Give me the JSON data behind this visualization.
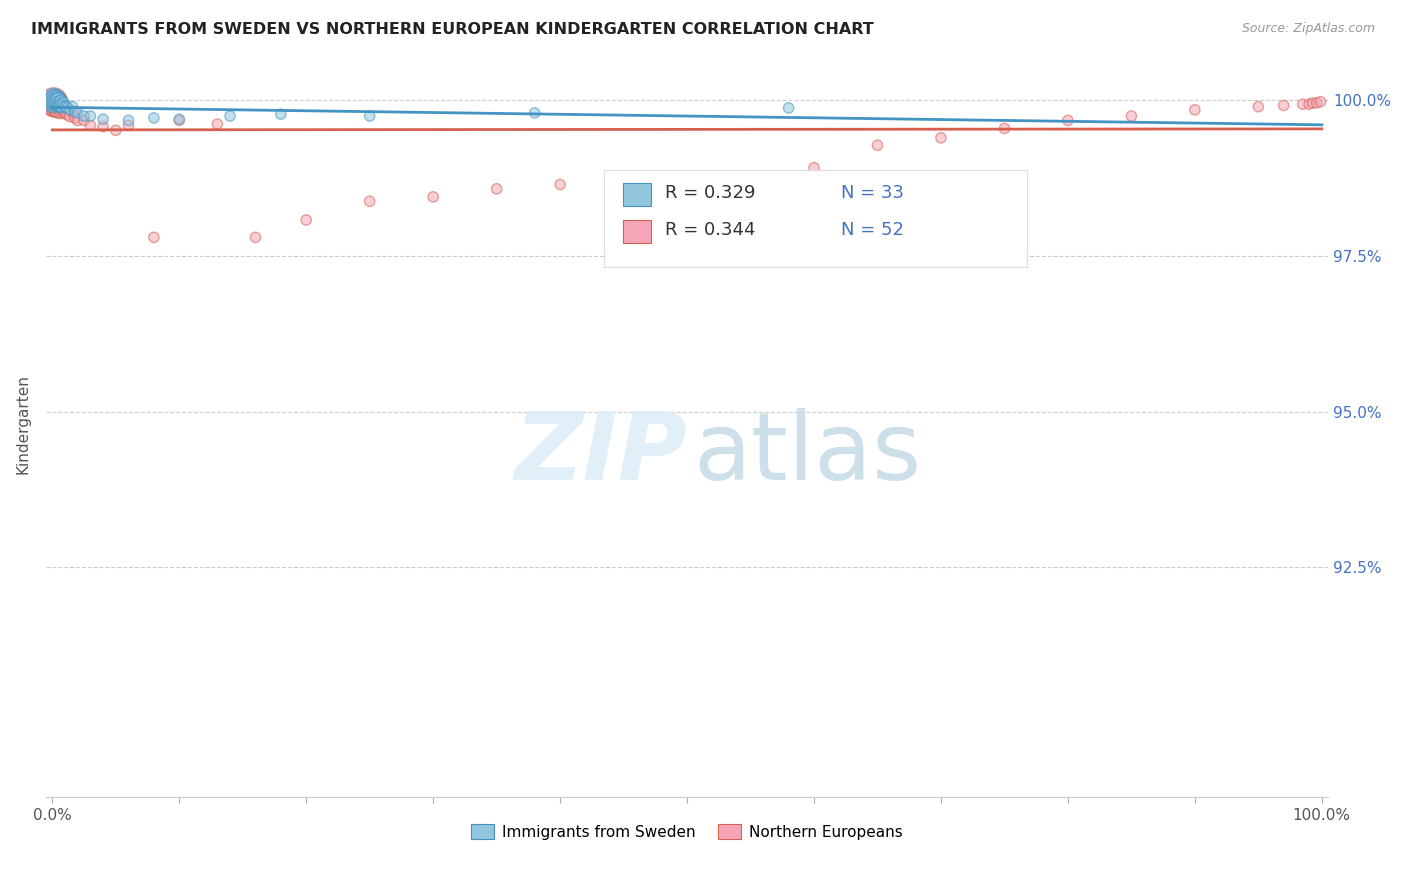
{
  "title": "IMMIGRANTS FROM SWEDEN VS NORTHERN EUROPEAN KINDERGARTEN CORRELATION CHART",
  "source": "Source: ZipAtlas.com",
  "ylabel": "Kindergarten",
  "ytick_labels": [
    "100.0%",
    "97.5%",
    "95.0%",
    "92.5%"
  ],
  "ytick_values": [
    1.0,
    0.975,
    0.95,
    0.925
  ],
  "xlim": [
    0.0,
    1.0
  ],
  "ylim": [
    0.888,
    1.008
  ],
  "legend_r1": "R = 0.329",
  "legend_n1": "N = 33",
  "legend_r2": "R = 0.344",
  "legend_n2": "N = 52",
  "color_blue": "#92c5de",
  "color_pink": "#f4a6b8",
  "color_blue_line": "#4393c3",
  "color_pink_line": "#d6604d",
  "sweden_x": [
    0.001,
    0.002,
    0.002,
    0.003,
    0.003,
    0.004,
    0.004,
    0.005,
    0.005,
    0.006,
    0.006,
    0.007,
    0.007,
    0.008,
    0.009,
    0.01,
    0.011,
    0.012,
    0.014,
    0.016,
    0.018,
    0.02,
    0.025,
    0.03,
    0.04,
    0.06,
    0.08,
    0.1,
    0.14,
    0.18,
    0.25,
    0.38,
    0.58
  ],
  "sweden_y": [
    1.0,
    1.0,
    1.0,
    1.0,
    0.9998,
    0.9998,
    0.9998,
    1.0,
    0.9995,
    0.9995,
    0.9992,
    0.9998,
    0.9992,
    0.999,
    0.9995,
    0.999,
    0.999,
    0.9988,
    0.9985,
    0.999,
    0.9982,
    0.998,
    0.9975,
    0.9975,
    0.997,
    0.9968,
    0.9972,
    0.997,
    0.9975,
    0.9978,
    0.9975,
    0.998,
    0.9988
  ],
  "sweden_sizes": [
    300,
    250,
    200,
    180,
    160,
    150,
    140,
    130,
    120,
    110,
    100,
    90,
    85,
    80,
    75,
    70,
    65,
    60,
    55,
    55,
    55,
    55,
    55,
    55,
    55,
    55,
    55,
    55,
    55,
    55,
    55,
    55,
    55
  ],
  "northern_x": [
    0.001,
    0.001,
    0.002,
    0.002,
    0.003,
    0.003,
    0.004,
    0.004,
    0.005,
    0.005,
    0.006,
    0.006,
    0.007,
    0.007,
    0.008,
    0.009,
    0.01,
    0.012,
    0.014,
    0.016,
    0.018,
    0.02,
    0.025,
    0.03,
    0.04,
    0.05,
    0.06,
    0.08,
    0.1,
    0.13,
    0.16,
    0.2,
    0.25,
    0.3,
    0.35,
    0.4,
    0.46,
    0.52,
    0.6,
    0.65,
    0.7,
    0.75,
    0.8,
    0.85,
    0.9,
    0.95,
    0.97,
    0.985,
    0.99,
    0.993,
    0.996,
    0.999
  ],
  "northern_y": [
    0.9998,
    0.9995,
    0.9998,
    0.9992,
    0.9995,
    0.999,
    0.9992,
    0.9988,
    0.9998,
    0.9985,
    0.999,
    0.9988,
    0.9992,
    0.9982,
    0.9985,
    0.9988,
    0.9982,
    0.9978,
    0.9975,
    0.9982,
    0.9972,
    0.9968,
    0.9968,
    0.996,
    0.9958,
    0.9952,
    0.996,
    0.978,
    0.9968,
    0.9962,
    0.978,
    0.9808,
    0.9838,
    0.9845,
    0.9858,
    0.9865,
    0.987,
    0.9878,
    0.9892,
    0.9928,
    0.994,
    0.9955,
    0.9968,
    0.9975,
    0.9985,
    0.999,
    0.9992,
    0.9994,
    0.9994,
    0.9996,
    0.9996,
    0.9998
  ],
  "northern_sizes": [
    400,
    350,
    300,
    280,
    250,
    220,
    200,
    180,
    160,
    150,
    130,
    120,
    110,
    100,
    90,
    85,
    80,
    75,
    70,
    65,
    60,
    58,
    56,
    55,
    55,
    55,
    55,
    55,
    55,
    55,
    55,
    55,
    55,
    55,
    55,
    55,
    55,
    55,
    55,
    55,
    55,
    55,
    55,
    55,
    55,
    55,
    55,
    55,
    55,
    55,
    55,
    55
  ]
}
